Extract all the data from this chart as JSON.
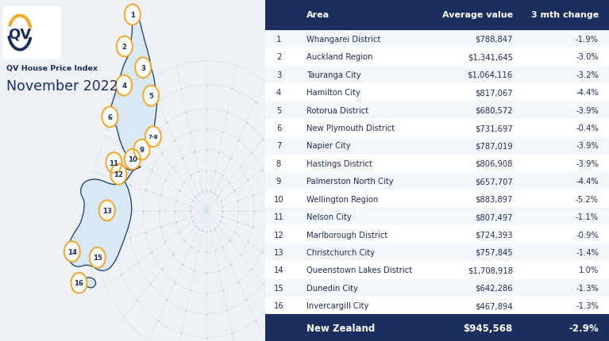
{
  "title_small": "QV House Price Index",
  "title_large": "November 2022",
  "col_headers": [
    "Area",
    "Average value",
    "3 mth change"
  ],
  "rows": [
    [
      1,
      "Whangarei District",
      "$788,847",
      "-1.9%"
    ],
    [
      2,
      "Auckland Region",
      "$1,341,645",
      "-3.0%"
    ],
    [
      3,
      "Tauranga City",
      "$1,064,116",
      "-3.2%"
    ],
    [
      4,
      "Hamilton City",
      "$817,067",
      "-4.4%"
    ],
    [
      5,
      "Rotorua District",
      "$680,572",
      "-3.9%"
    ],
    [
      6,
      "New Plymouth District",
      "$731,697",
      "-0.4%"
    ],
    [
      7,
      "Napier City",
      "$787,019",
      "-3.9%"
    ],
    [
      8,
      "Hastings District",
      "$806,908",
      "-3.9%"
    ],
    [
      9,
      "Palmerston North City",
      "$657,707",
      "-4.4%"
    ],
    [
      10,
      "Wellington Region",
      "$883,897",
      "-5.2%"
    ],
    [
      11,
      "Nelson City",
      "$807,497",
      "-1.1%"
    ],
    [
      12,
      "Marlborough District",
      "$724,393",
      "-0.9%"
    ],
    [
      13,
      "Christchurch City",
      "$757,845",
      "-1.4%"
    ],
    [
      14,
      "Queenstown Lakes District",
      "$1,708,918",
      "1.0%"
    ],
    [
      15,
      "Dunedin City",
      "$642,286",
      "-1.3%"
    ],
    [
      16,
      "Invercargill City",
      "$467,894",
      "-1.3%"
    ]
  ],
  "footer": [
    "New Zealand",
    "$945,568",
    "-2.9%"
  ],
  "bg_color": "#eef2f7",
  "table_bg": "#ffffff",
  "header_bg": "#1c2e5e",
  "footer_bg": "#1c2e5e",
  "header_text_color": "#ffffff",
  "row_text_color": "#1c2e5e",
  "footer_text_color": "#ffffff",
  "map_outline_color": "#1c3a6e",
  "map_fill_color": "#d8e8f5",
  "circle_color": "#f5a623",
  "circle_text_color": "#1c2e5e",
  "radial_color": "#c0d5e8",
  "logo_arc_top": "#f5a623",
  "logo_arc_bottom": "#1c2e5e"
}
